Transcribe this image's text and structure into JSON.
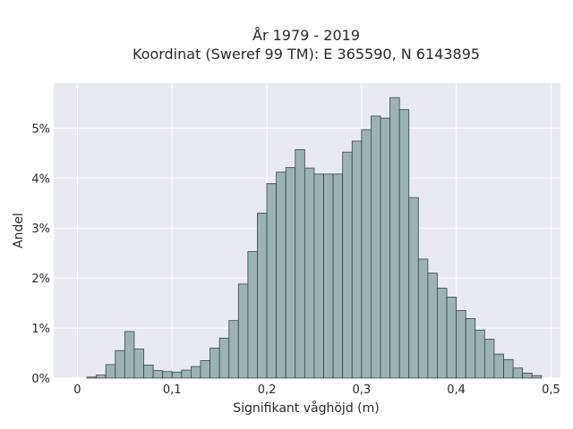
{
  "chart_data": {
    "type": "bar",
    "title_line1": "År 1979 - 2019",
    "title_line2": "Koordinat (Sweref 99 TM): E 365590, N 6143895",
    "xlabel": "Signifikant våghöjd (m)",
    "ylabel": "Andel",
    "xlim": [
      -0.025,
      0.51
    ],
    "ylim": [
      0,
      5.9
    ],
    "x_ticks": [
      0,
      0.1,
      0.2,
      0.3,
      0.4,
      0.5
    ],
    "x_tick_labels": [
      "0",
      "0,1",
      "0,2",
      "0,3",
      "0,4",
      "0,5"
    ],
    "y_ticks": [
      0,
      1,
      2,
      3,
      4,
      5
    ],
    "y_tick_labels": [
      "0%",
      "1%",
      "2%",
      "3%",
      "4%",
      "5%"
    ],
    "grid": true,
    "bin_width": 0.01,
    "bin_starts": [
      0.01,
      0.02,
      0.03,
      0.04,
      0.05,
      0.06,
      0.07,
      0.08,
      0.09,
      0.1,
      0.11,
      0.12,
      0.13,
      0.14,
      0.15,
      0.16,
      0.17,
      0.18,
      0.19,
      0.2,
      0.21,
      0.22,
      0.23,
      0.24,
      0.25,
      0.26,
      0.27,
      0.28,
      0.29,
      0.3,
      0.31,
      0.32,
      0.33,
      0.34,
      0.35,
      0.36,
      0.37,
      0.38,
      0.39,
      0.4,
      0.41,
      0.42,
      0.43,
      0.44,
      0.45,
      0.46,
      0.47,
      0.48
    ],
    "values": [
      0.02,
      0.06,
      0.27,
      0.55,
      0.93,
      0.58,
      0.26,
      0.15,
      0.13,
      0.12,
      0.16,
      0.23,
      0.35,
      0.6,
      0.8,
      1.15,
      1.88,
      2.53,
      3.3,
      3.89,
      4.12,
      4.21,
      4.57,
      4.2,
      4.08,
      4.08,
      4.08,
      4.52,
      4.74,
      4.97,
      5.24,
      5.2,
      5.61,
      5.37,
      3.61,
      2.38,
      2.1,
      1.8,
      1.62,
      1.35,
      1.19,
      0.96,
      0.78,
      0.48,
      0.37,
      0.2,
      0.1,
      0.05
    ],
    "colors": {
      "bar_fill": "#9bb3b3",
      "bar_stroke": "#3a4444",
      "plot_bg": "#e9e9f2",
      "grid": "#ffffff"
    }
  }
}
